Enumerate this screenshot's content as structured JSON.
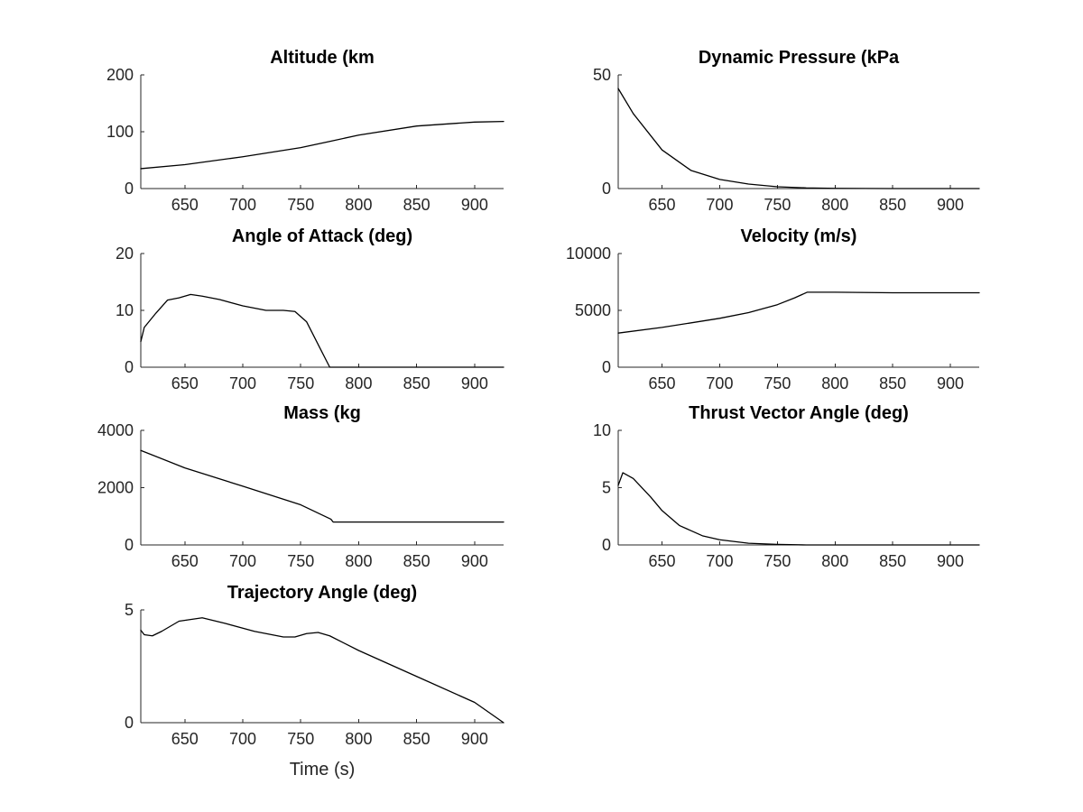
{
  "colors": {
    "background": "#ffffff",
    "axis": "#262626",
    "line": "#000000"
  },
  "chart_data": [
    {
      "type": "line",
      "title": "Altitude (km",
      "xlabel": "",
      "ylabel": "",
      "xlim": [
        612,
        925
      ],
      "ylim": [
        0,
        200
      ],
      "xticks": [
        650,
        700,
        750,
        800,
        850,
        900
      ],
      "yticks": [
        0,
        100,
        200
      ],
      "grid": false,
      "series": [
        {
          "x": [
            612,
            650,
            700,
            750,
            775,
            800,
            850,
            900,
            925
          ],
          "y": [
            35,
            42,
            56,
            72,
            83,
            94,
            110,
            117,
            118
          ]
        }
      ]
    },
    {
      "type": "line",
      "title": "Dynamic Pressure (kPa",
      "xlabel": "",
      "ylabel": "",
      "xlim": [
        612,
        925
      ],
      "ylim": [
        0,
        50
      ],
      "xticks": [
        650,
        700,
        750,
        800,
        850,
        900
      ],
      "yticks": [
        0,
        50
      ],
      "grid": false,
      "series": [
        {
          "x": [
            612,
            625,
            650,
            675,
            700,
            725,
            750,
            775,
            800,
            850,
            900,
            925
          ],
          "y": [
            44,
            33,
            17,
            8,
            4,
            2,
            0.8,
            0.3,
            0.1,
            0,
            0,
            0
          ]
        }
      ]
    },
    {
      "type": "line",
      "title": "Angle of Attack (deg)",
      "xlabel": "",
      "ylabel": "",
      "xlim": [
        612,
        925
      ],
      "ylim": [
        0,
        20
      ],
      "xticks": [
        650,
        700,
        750,
        800,
        850,
        900
      ],
      "yticks": [
        0,
        10,
        20
      ],
      "grid": false,
      "series": [
        {
          "x": [
            612,
            615,
            625,
            635,
            645,
            655,
            665,
            680,
            700,
            720,
            735,
            745,
            755,
            765,
            775,
            800,
            850,
            900,
            925
          ],
          "y": [
            4.5,
            7,
            9.5,
            11.8,
            12.2,
            12.8,
            12.5,
            11.9,
            10.8,
            10,
            10,
            9.8,
            8,
            4,
            0,
            0,
            0,
            0,
            0
          ]
        }
      ]
    },
    {
      "type": "line",
      "title": "Velocity (m/s)",
      "xlabel": "",
      "ylabel": "",
      "xlim": [
        612,
        925
      ],
      "ylim": [
        0,
        10000
      ],
      "xticks": [
        650,
        700,
        750,
        800,
        850,
        900
      ],
      "yticks": [
        0,
        5000,
        10000
      ],
      "grid": false,
      "series": [
        {
          "x": [
            612,
            650,
            700,
            725,
            750,
            765,
            776,
            800,
            850,
            900,
            925
          ],
          "y": [
            3000,
            3500,
            4300,
            4800,
            5500,
            6100,
            6600,
            6600,
            6550,
            6550,
            6550
          ]
        }
      ]
    },
    {
      "type": "line",
      "title": "Mass (kg",
      "xlabel": "",
      "ylabel": "",
      "xlim": [
        612,
        925
      ],
      "ylim": [
        0,
        4000
      ],
      "xticks": [
        650,
        700,
        750,
        800,
        850,
        900
      ],
      "yticks": [
        0,
        2000,
        4000
      ],
      "grid": false,
      "series": [
        {
          "x": [
            612,
            650,
            700,
            750,
            776,
            778,
            800,
            850,
            900,
            925
          ],
          "y": [
            3300,
            2690,
            2050,
            1400,
            900,
            800,
            800,
            800,
            800,
            800
          ]
        }
      ]
    },
    {
      "type": "line",
      "title": "Thrust Vector Angle (deg)",
      "xlabel": "",
      "ylabel": "",
      "xlim": [
        612,
        925
      ],
      "ylim": [
        0,
        10
      ],
      "xticks": [
        650,
        700,
        750,
        800,
        850,
        900
      ],
      "yticks": [
        0,
        5,
        10
      ],
      "grid": false,
      "series": [
        {
          "x": [
            612,
            616,
            625,
            640,
            650,
            665,
            685,
            700,
            725,
            750,
            775,
            800,
            850,
            900,
            925
          ],
          "y": [
            5.2,
            6.3,
            5.8,
            4.2,
            3.0,
            1.7,
            0.8,
            0.45,
            0.15,
            0.05,
            0,
            0,
            0,
            0,
            0
          ]
        }
      ]
    },
    {
      "type": "line",
      "title": "Trajectory Angle (deg)",
      "xlabel": "Time (s)",
      "ylabel": "",
      "xlim": [
        612,
        925
      ],
      "ylim": [
        0,
        5
      ],
      "xticks": [
        650,
        700,
        750,
        800,
        850,
        900
      ],
      "yticks": [
        0,
        5
      ],
      "grid": false,
      "series": [
        {
          "x": [
            612,
            615,
            622,
            630,
            645,
            665,
            685,
            710,
            735,
            745,
            755,
            765,
            775,
            800,
            850,
            900,
            925
          ],
          "y": [
            4.1,
            3.9,
            3.85,
            4.05,
            4.5,
            4.65,
            4.4,
            4.05,
            3.8,
            3.8,
            3.95,
            4.0,
            3.85,
            3.2,
            2.05,
            0.9,
            0
          ]
        }
      ]
    }
  ]
}
